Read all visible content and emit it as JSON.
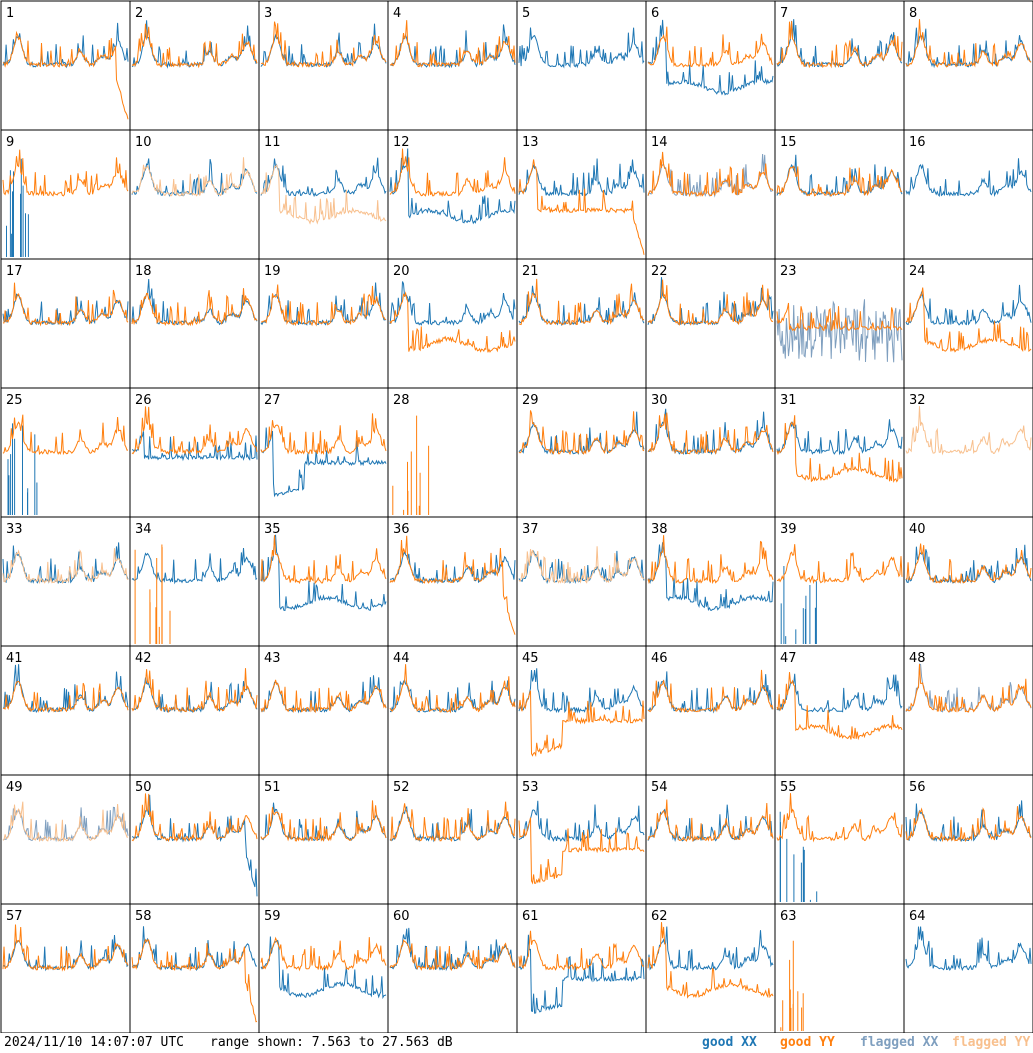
{
  "chart_data": {
    "type": "line",
    "layout": "small-multiples",
    "panel_labels": [
      "1",
      "2",
      "3",
      "4",
      "5",
      "6",
      "7",
      "8",
      "9",
      "10",
      "11",
      "12",
      "13",
      "14",
      "15",
      "16",
      "17",
      "18",
      "19",
      "20",
      "21",
      "22",
      "23",
      "24",
      "25",
      "26",
      "27",
      "28",
      "29",
      "30",
      "31",
      "32",
      "33",
      "34",
      "35",
      "36",
      "37",
      "38",
      "39",
      "40",
      "41",
      "42",
      "43",
      "44",
      "45",
      "46",
      "47",
      "48",
      "49",
      "50",
      "51",
      "52",
      "53",
      "54",
      "55",
      "56",
      "57",
      "58",
      "59",
      "60",
      "61",
      "62",
      "63",
      "64"
    ],
    "legend": [
      {
        "label": "good XX",
        "color": "#1f77b4"
      },
      {
        "label": "good YY",
        "color": "#ff7f0e"
      },
      {
        "label": "flagged XX",
        "color": "#7f9fbf"
      },
      {
        "label": "flagged YY",
        "color": "#f8c08e"
      }
    ],
    "ylim_db": [
      7.563,
      27.563
    ],
    "timestamp": "2024/11/10 14:07:07 UTC",
    "range_text": "range shown: 7.563 to 27.563 dB",
    "panels": {
      "1": {
        "yy_shape": "drop"
      },
      "5": {
        "yy_shape": "none"
      },
      "6": {
        "xx_shape": "low"
      },
      "9": {
        "xx_shape": "spikes"
      },
      "10": {
        "xx_flag": false,
        "yy_flag": true
      },
      "11": {
        "yy_flag": true,
        "yy_shape": "low"
      },
      "12": {
        "xx_shape": "low"
      },
      "13": {
        "yy_shape": "droplow"
      },
      "14": {
        "xx_flag": true
      },
      "16": {
        "yy_shape": "none"
      },
      "20": {
        "yy_shape": "low"
      },
      "23": {
        "xx_flag": true,
        "xx_shape": "noise",
        "yy_shape": "flat"
      },
      "24": {
        "yy_shape": "low"
      },
      "25": {
        "xx_shape": "spikes"
      },
      "26": {
        "xx_shape": "flat"
      },
      "27": {
        "xx_shape": "dip"
      },
      "28": {
        "xx_shape": "none",
        "yy_shape": "spikes"
      },
      "31": {
        "yy_shape": "low"
      },
      "32": {
        "xx_shape": "none",
        "yy_flag": true
      },
      "33": {
        "yy_flag": true
      },
      "34": {
        "yy_shape": "spikes"
      },
      "35": {
        "xx_shape": "low"
      },
      "36": {
        "yy_shape": "drop"
      },
      "37": {
        "yy_flag": true
      },
      "38": {
        "xx_shape": "low"
      },
      "39": {
        "xx_shape": "spikes"
      },
      "45": {
        "yy_shape": "dip"
      },
      "47": {
        "yy_shape": "low"
      },
      "48": {
        "xx_flag": true
      },
      "49": {
        "xx_flag": true,
        "yy_flag": true
      },
      "50": {
        "xx_shape": "drop"
      },
      "53": {
        "yy_shape": "dip"
      },
      "55": {
        "xx_shape": "spikes"
      },
      "58": {
        "yy_shape": "drop"
      },
      "59": {
        "xx_shape": "low"
      },
      "61": {
        "xx_shape": "dip"
      },
      "62": {
        "yy_shape": "low"
      },
      "63": {
        "xx_shape": "none",
        "yy_shape": "spikes"
      },
      "64": {
        "yy_shape": "none"
      }
    }
  },
  "footer": {
    "timestamp": "2024/11/10 14:07:07 UTC",
    "range_text": "range shown: 7.563 to 27.563 dB"
  },
  "legend_labels": {
    "good_xx": "good XX",
    "good_yy": "good YY",
    "flagged_xx": "flagged XX",
    "flagged_yy": "flagged YY"
  },
  "colors": {
    "good_xx": "#1f77b4",
    "good_yy": "#ff7f0e",
    "flagged_xx": "#7f9fbf",
    "flagged_yy": "#f8c08e",
    "grid_line": "#000000"
  }
}
